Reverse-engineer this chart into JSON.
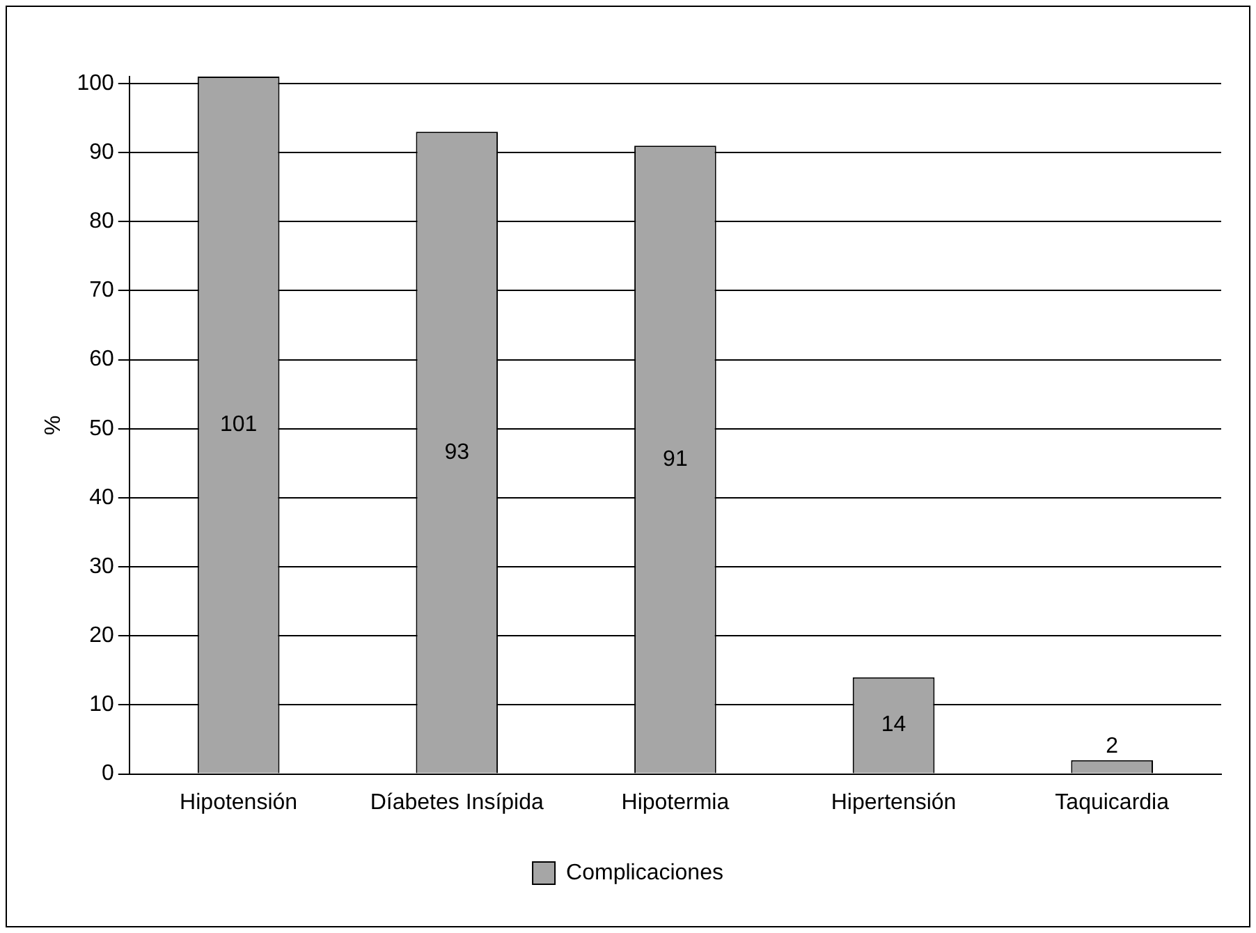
{
  "chart_data": {
    "type": "bar",
    "ylabel": "%",
    "categories": [
      "Hipotensión",
      "Díabetes Insípida",
      "Hipotermia",
      "Hipertensión",
      "Taquicardia"
    ],
    "series": [
      {
        "name": "Complicaciones",
        "color": "#a6a6a6",
        "values": [
          101,
          93,
          91,
          14,
          2
        ]
      }
    ],
    "data_labels": true,
    "ylim": [
      0,
      101
    ],
    "yticks": [
      0,
      10,
      20,
      30,
      40,
      50,
      60,
      70,
      80,
      90,
      100
    ],
    "grid": "y",
    "legend": "bottom"
  }
}
